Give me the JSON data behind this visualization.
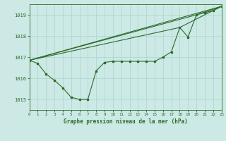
{
  "background_color": "#cce9e5",
  "grid_color": "#aad4ce",
  "line_color": "#2d6b2d",
  "text_color": "#2d6b2d",
  "title": "Graphe pression niveau de la mer (hPa)",
  "xlim": [
    0,
    23
  ],
  "ylim": [
    1014.5,
    1019.5
  ],
  "yticks": [
    1015,
    1016,
    1017,
    1018,
    1019
  ],
  "xticks": [
    0,
    1,
    2,
    3,
    4,
    5,
    6,
    7,
    8,
    9,
    10,
    11,
    12,
    13,
    14,
    15,
    16,
    17,
    18,
    19,
    20,
    21,
    22,
    23
  ],
  "line1_x": [
    0,
    1,
    2,
    3,
    4,
    5,
    6,
    7,
    8,
    9,
    10,
    11,
    12,
    13,
    14,
    15,
    16,
    17,
    18,
    19,
    20,
    21,
    22,
    23
  ],
  "line1_y": [
    1016.85,
    1016.7,
    1016.2,
    1015.9,
    1015.55,
    1015.1,
    1015.0,
    1015.0,
    1016.35,
    1016.75,
    1016.8,
    1016.8,
    1016.8,
    1016.8,
    1016.8,
    1016.8,
    1017.0,
    1017.25,
    1018.4,
    1017.95,
    1019.0,
    1019.1,
    1019.2,
    1019.4
  ],
  "line2_x": [
    0,
    23
  ],
  "line2_y": [
    1016.85,
    1019.4
  ],
  "line3_x": [
    0,
    18,
    23
  ],
  "line3_y": [
    1016.85,
    1018.4,
    1019.4
  ],
  "line4_x": [
    0,
    20,
    23
  ],
  "line4_y": [
    1016.85,
    1019.0,
    1019.4
  ]
}
